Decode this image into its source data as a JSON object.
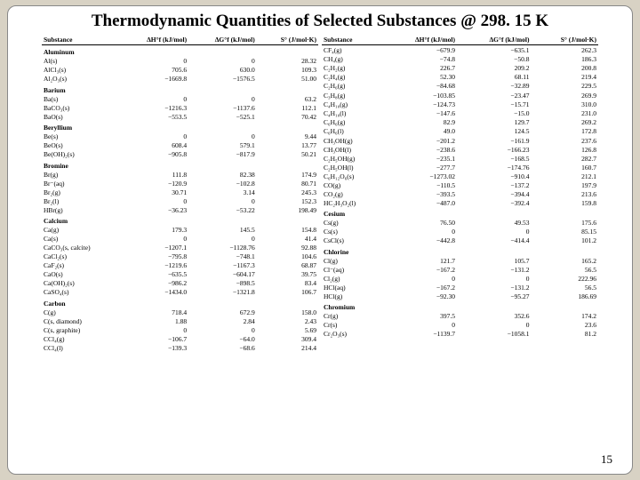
{
  "title": "Thermodynamic Quantities of Selected Substances @ 298. 15 K",
  "page_number": "15",
  "headers": {
    "sub": "Substance",
    "dh": "ΔH°f (kJ/mol)",
    "dg": "ΔG°f (kJ/mol)",
    "s": "S° (J/mol·K)"
  },
  "left": [
    {
      "section": "Aluminum"
    },
    {
      "s": "Al(s)",
      "h": "0",
      "g": "0",
      "e": "28.32"
    },
    {
      "s": "AlCl₃(s)",
      "h": "705.6",
      "g": "630.0",
      "e": "109.3"
    },
    {
      "s": "Al₂O₃(s)",
      "h": "−1669.8",
      "g": "−1576.5",
      "e": "51.00"
    },
    {
      "section": "Barium"
    },
    {
      "s": "Ba(s)",
      "h": "0",
      "g": "0",
      "e": "63.2"
    },
    {
      "s": "BaCO₃(s)",
      "h": "−1216.3",
      "g": "−1137.6",
      "e": "112.1"
    },
    {
      "s": "BaO(s)",
      "h": "−553.5",
      "g": "−525.1",
      "e": "70.42"
    },
    {
      "section": "Beryllium"
    },
    {
      "s": "Be(s)",
      "h": "0",
      "g": "0",
      "e": "9.44"
    },
    {
      "s": "BeO(s)",
      "h": "608.4",
      "g": "579.1",
      "e": "13.77"
    },
    {
      "s": "Be(OH)₂(s)",
      "h": "−905.8",
      "g": "−817.9",
      "e": "50.21"
    },
    {
      "section": "Bromine"
    },
    {
      "s": "Br(g)",
      "h": "111.8",
      "g": "82.38",
      "e": "174.9"
    },
    {
      "s": "Br⁻(aq)",
      "h": "−120.9",
      "g": "−102.8",
      "e": "80.71"
    },
    {
      "s": "Br₂(g)",
      "h": "30.71",
      "g": "3.14",
      "e": "245.3"
    },
    {
      "s": "Br₂(l)",
      "h": "0",
      "g": "0",
      "e": "152.3"
    },
    {
      "s": "HBr(g)",
      "h": "−36.23",
      "g": "−53.22",
      "e": "198.49"
    },
    {
      "section": "Calcium"
    },
    {
      "s": "Ca(g)",
      "h": "179.3",
      "g": "145.5",
      "e": "154.8"
    },
    {
      "s": "Ca(s)",
      "h": "0",
      "g": "0",
      "e": "41.4"
    },
    {
      "s": "CaCO₃(s, calcite)",
      "h": "−1207.1",
      "g": "−1128.76",
      "e": "92.88"
    },
    {
      "s": "CaCl₂(s)",
      "h": "−795.8",
      "g": "−748.1",
      "e": "104.6"
    },
    {
      "s": "CaF₂(s)",
      "h": "−1219.6",
      "g": "−1167.3",
      "e": "68.87"
    },
    {
      "s": "CaO(s)",
      "h": "−635.5",
      "g": "−604.17",
      "e": "39.75"
    },
    {
      "s": "Ca(OH)₂(s)",
      "h": "−986.2",
      "g": "−898.5",
      "e": "83.4"
    },
    {
      "s": "CaSO₄(s)",
      "h": "−1434.0",
      "g": "−1321.8",
      "e": "106.7"
    },
    {
      "section": "Carbon"
    },
    {
      "s": "C(g)",
      "h": "718.4",
      "g": "672.9",
      "e": "158.0"
    },
    {
      "s": "C(s, diamond)",
      "h": "1.88",
      "g": "2.84",
      "e": "2.43"
    },
    {
      "s": "C(s, graphite)",
      "h": "0",
      "g": "0",
      "e": "5.69"
    },
    {
      "s": "CCl₄(g)",
      "h": "−106.7",
      "g": "−64.0",
      "e": "309.4"
    },
    {
      "s": "CCl₄(l)",
      "h": "−139.3",
      "g": "−68.6",
      "e": "214.4"
    }
  ],
  "right": [
    {
      "s": "CF₄(g)",
      "h": "−679.9",
      "g": "−635.1",
      "e": "262.3"
    },
    {
      "s": "CH₄(g)",
      "h": "−74.8",
      "g": "−50.8",
      "e": "186.3"
    },
    {
      "s": "C₂H₂(g)",
      "h": "226.7",
      "g": "209.2",
      "e": "200.8"
    },
    {
      "s": "C₂H₄(g)",
      "h": "52.30",
      "g": "68.11",
      "e": "219.4"
    },
    {
      "s": "C₂H₆(g)",
      "h": "−84.68",
      "g": "−32.89",
      "e": "229.5"
    },
    {
      "s": "",
      "h": "",
      "g": "",
      "e": ""
    },
    {
      "s": "C₃H₈(g)",
      "h": "−103.85",
      "g": "−23.47",
      "e": "269.9"
    },
    {
      "s": "C₄H₁₀(g)",
      "h": "−124.73",
      "g": "−15.71",
      "e": "310.0"
    },
    {
      "s": "C₄H₁₀(l)",
      "h": "−147.6",
      "g": "−15.0",
      "e": "231.0"
    },
    {
      "s": "C₆H₆(g)",
      "h": "82.9",
      "g": "129.7",
      "e": "269.2"
    },
    {
      "s": "C₆H₆(l)",
      "h": "49.0",
      "g": "124.5",
      "e": "172.8"
    },
    {
      "s": "",
      "h": "",
      "g": "",
      "e": ""
    },
    {
      "s": "CH₃OH(g)",
      "h": "−201.2",
      "g": "−161.9",
      "e": "237.6"
    },
    {
      "s": "CH₃OH(l)",
      "h": "−238.6",
      "g": "−166.23",
      "e": "126.8"
    },
    {
      "s": "C₂H₅OH(g)",
      "h": "−235.1",
      "g": "−168.5",
      "e": "282.7"
    },
    {
      "s": "C₂H₅OH(l)",
      "h": "−277.7",
      "g": "−174.76",
      "e": "160.7"
    },
    {
      "s": "C₆H₁₂O₆(s)",
      "h": "−1273.02",
      "g": "−910.4",
      "e": "212.1"
    },
    {
      "s": "CO(g)",
      "h": "−110.5",
      "g": "−137.2",
      "e": "197.9"
    },
    {
      "s": "CO₂(g)",
      "h": "−393.5",
      "g": "−394.4",
      "e": "213.6"
    },
    {
      "s": "HC₂H₃O₂(l)",
      "h": "−487.0",
      "g": "−392.4",
      "e": "159.8"
    },
    {
      "section": "Cesium"
    },
    {
      "s": "Cs(g)",
      "h": "76.50",
      "g": "49.53",
      "e": "175.6"
    },
    {
      "s": "Cs(s)",
      "h": "0",
      "g": "0",
      "e": "85.15"
    },
    {
      "s": "CsCl(s)",
      "h": "−442.8",
      "g": "−414.4",
      "e": "101.2"
    },
    {
      "section": "Chlorine"
    },
    {
      "s": "Cl(g)",
      "h": "121.7",
      "g": "105.7",
      "e": "165.2"
    },
    {
      "s": "Cl⁻(aq)",
      "h": "−167.2",
      "g": "−131.2",
      "e": "56.5"
    },
    {
      "s": "Cl₂(g)",
      "h": "0",
      "g": "0",
      "e": "222.96"
    },
    {
      "s": "HCl(aq)",
      "h": "−167.2",
      "g": "−131.2",
      "e": "56.5"
    },
    {
      "s": "HCl(g)",
      "h": "−92.30",
      "g": "−95.27",
      "e": "186.69"
    },
    {
      "section": "Chromium"
    },
    {
      "s": "Cr(g)",
      "h": "397.5",
      "g": "352.6",
      "e": "174.2"
    },
    {
      "s": "Cr(s)",
      "h": "0",
      "g": "0",
      "e": "23.6"
    },
    {
      "s": "Cr₂O₃(s)",
      "h": "−1139.7",
      "g": "−1058.1",
      "e": "81.2"
    }
  ]
}
